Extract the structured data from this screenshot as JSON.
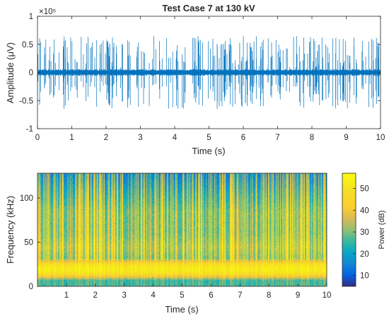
{
  "chart_data": [
    {
      "type": "line",
      "title": "Test Case 7 at 130 kV",
      "xlabel": "Time (s)",
      "ylabel": "Amplitude (μV)",
      "y_exponent_label": "×10⁵",
      "xlim": [
        0,
        10
      ],
      "ylim": [
        -1,
        1
      ],
      "y_scale_factor": 100000,
      "x_ticks": [
        "0",
        "1",
        "2",
        "3",
        "4",
        "5",
        "6",
        "7",
        "8",
        "9",
        "10"
      ],
      "y_ticks": [
        "-1",
        "-0.5",
        "0",
        "0.5",
        "1"
      ],
      "line_color": "#0072bd",
      "baseline_noise_amplitude": 0.06,
      "max_pulse_amplitude": 0.65,
      "pulses_per_second_approx": 25
    },
    {
      "type": "heatmap",
      "xlabel": "Time (s)",
      "ylabel": "Frequency (kHz)",
      "xlim": [
        0,
        10
      ],
      "ylim": [
        0,
        128
      ],
      "x_ticks": [
        "1",
        "2",
        "3",
        "4",
        "5",
        "6",
        "7",
        "8",
        "9",
        "10"
      ],
      "y_ticks": [
        "0",
        "50",
        "100"
      ],
      "colorbar": {
        "label": "Power (dB)",
        "range": [
          5,
          57
        ],
        "ticks": [
          "10",
          "20",
          "30",
          "40",
          "50"
        ],
        "colormap": "parula"
      },
      "high_power_band_khz": [
        12,
        28
      ],
      "peak_power_db": 50,
      "background_power_db": 27
    }
  ]
}
